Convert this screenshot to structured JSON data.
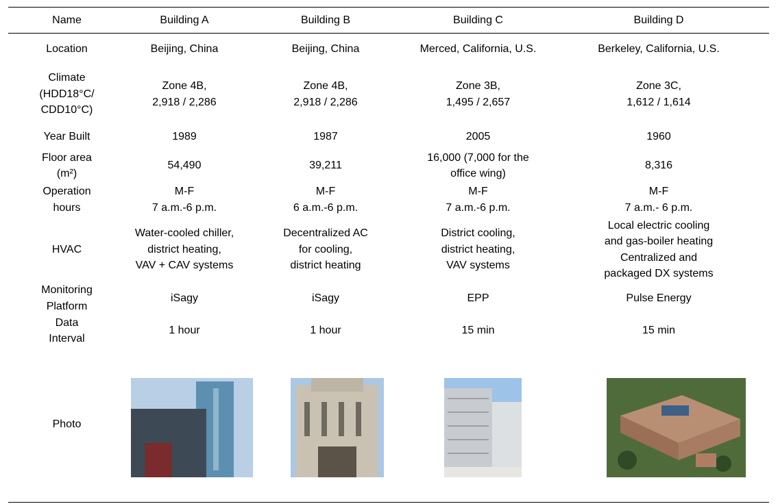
{
  "table": {
    "header": [
      "Name",
      "Building A",
      "Building B",
      "Building C",
      "Building D"
    ],
    "rows": [
      {
        "label": [
          "Location"
        ],
        "cells": [
          [
            "Beijing, China"
          ],
          [
            "Beijing, China"
          ],
          [
            "Merced, California, U.S."
          ],
          [
            "Berkeley, California, U.S."
          ]
        ]
      },
      {
        "label": [
          "Climate",
          "(HDD18°C/",
          "CDD10°C)"
        ],
        "cells": [
          [
            "Zone 4B,",
            "2,918 / 2,286"
          ],
          [
            "Zone 4B,",
            "2,918 / 2,286"
          ],
          [
            "Zone 3B,",
            "1,495 / 2,657"
          ],
          [
            "Zone 3C,",
            "1,612 / 1,614"
          ]
        ]
      },
      {
        "label": [
          "Year Built"
        ],
        "cells": [
          [
            "1989"
          ],
          [
            "1987"
          ],
          [
            "2005"
          ],
          [
            "1960"
          ]
        ]
      },
      {
        "label": [
          "Floor area",
          "(m²)"
        ],
        "cells": [
          [
            "54,490"
          ],
          [
            "39,211"
          ],
          [
            "16,000 (7,000 for the",
            "office wing)"
          ],
          [
            "8,316"
          ]
        ]
      },
      {
        "label": [
          "Operation",
          "hours"
        ],
        "cells": [
          [
            "M-F",
            "7 a.m.-6 p.m."
          ],
          [
            "M-F",
            "6 a.m.-6 p.m."
          ],
          [
            "M-F",
            "7 a.m.-6 p.m."
          ],
          [
            "M-F",
            "7 a.m.- 6 p.m."
          ]
        ]
      },
      {
        "label": [
          "HVAC"
        ],
        "cells": [
          [
            "Water-cooled chiller,",
            "district heating,",
            "VAV + CAV systems"
          ],
          [
            "Decentralized AC",
            "for cooling,",
            "district heating"
          ],
          [
            "District cooling,",
            "district heating,",
            "VAV systems"
          ],
          [
            "Local electric cooling",
            "and gas-boiler heating",
            "Centralized and",
            "packaged DX systems"
          ]
        ]
      },
      {
        "label": [
          "Monitoring",
          "Platform"
        ],
        "cells": [
          [
            "iSagy"
          ],
          [
            "iSagy"
          ],
          [
            "EPP"
          ],
          [
            "Pulse Energy"
          ]
        ]
      },
      {
        "label": [
          "Data",
          "Interval"
        ],
        "cells": [
          [
            "1 hour"
          ],
          [
            "1 hour"
          ],
          [
            "15 min"
          ],
          [
            "15 min"
          ]
        ]
      }
    ],
    "photo_label": "Photo"
  }
}
